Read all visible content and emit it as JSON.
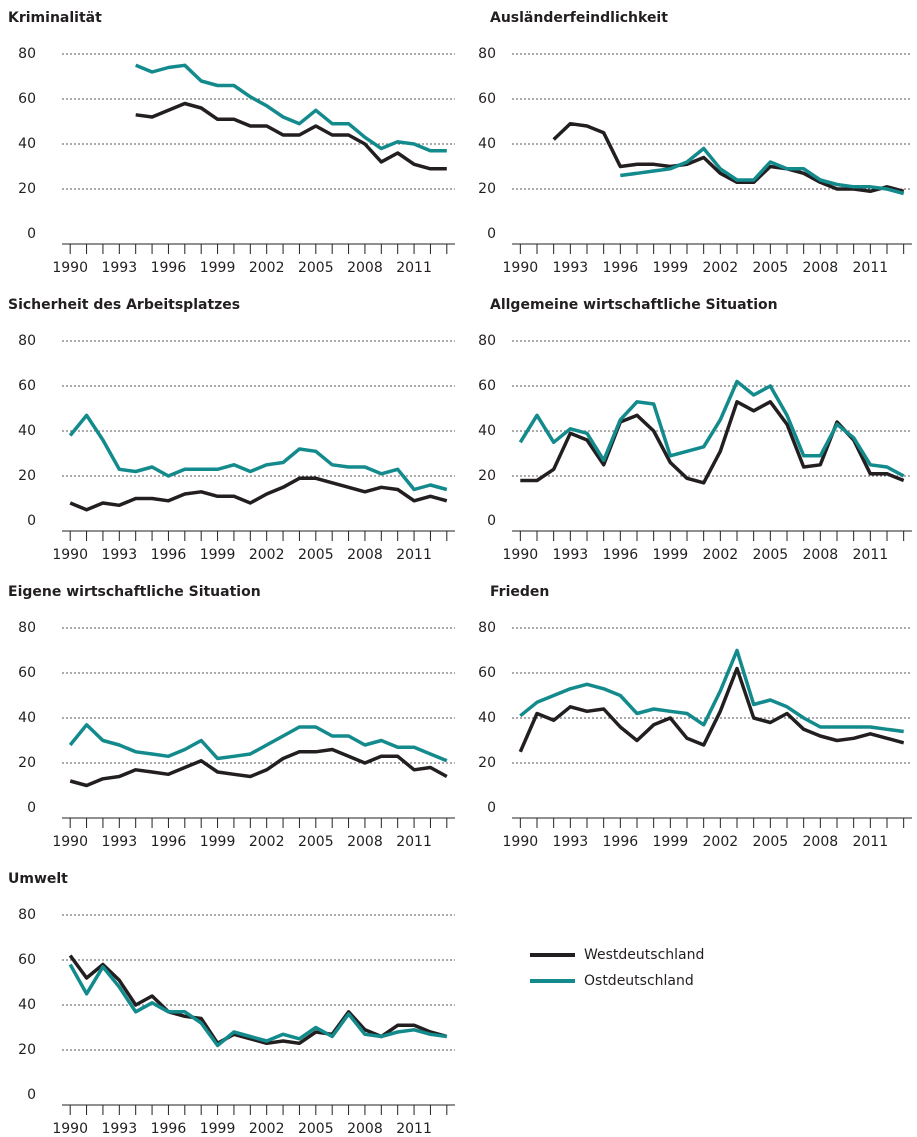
{
  "chart_data": [
    {
      "type": "line",
      "title": "Kriminalität",
      "x": [
        1990,
        1991,
        1992,
        1993,
        1994,
        1995,
        1996,
        1997,
        1998,
        1999,
        2000,
        2001,
        2002,
        2003,
        2004,
        2005,
        2006,
        2007,
        2008,
        2009,
        2010,
        2011,
        2012,
        2013
      ],
      "xlim": [
        1989.5,
        2013.5
      ],
      "xticks": [
        1990,
        1993,
        1996,
        1999,
        2002,
        2005,
        2008,
        2011
      ],
      "ylim": [
        0,
        80
      ],
      "yticks": [
        0,
        20,
        40,
        60,
        80
      ],
      "grid": true,
      "series": [
        {
          "name": "Westdeutschland",
          "color": "#231f20",
          "values": [
            null,
            null,
            null,
            null,
            53,
            52,
            55,
            58,
            56,
            51,
            51,
            48,
            48,
            44,
            44,
            48,
            44,
            44,
            40,
            32,
            36,
            31,
            29,
            29
          ]
        },
        {
          "name": "Ostdeutschland",
          "color": "#138a8c",
          "values": [
            null,
            null,
            null,
            null,
            75,
            72,
            74,
            75,
            68,
            66,
            66,
            61,
            57,
            52,
            49,
            55,
            49,
            49,
            43,
            38,
            41,
            40,
            37,
            37
          ]
        }
      ]
    },
    {
      "type": "line",
      "title": "Ausländerfeindlichkeit",
      "x": [
        1990,
        1991,
        1992,
        1993,
        1994,
        1995,
        1996,
        1997,
        1998,
        1999,
        2000,
        2001,
        2002,
        2003,
        2004,
        2005,
        2006,
        2007,
        2008,
        2009,
        2010,
        2011,
        2012,
        2013
      ],
      "xlim": [
        1989.5,
        2013.5
      ],
      "xticks": [
        1990,
        1993,
        1996,
        1999,
        2002,
        2005,
        2008,
        2011
      ],
      "ylim": [
        0,
        80
      ],
      "yticks": [
        0,
        20,
        40,
        60,
        80
      ],
      "grid": true,
      "series": [
        {
          "color": "#231f20",
          "values": [
            null,
            null,
            42,
            49,
            48,
            45,
            30,
            31,
            31,
            30,
            31,
            34,
            27,
            23,
            23,
            30,
            29,
            27,
            23,
            20,
            20,
            19,
            21,
            19
          ]
        },
        {
          "color": "#138a8c",
          "values": [
            null,
            null,
            null,
            null,
            null,
            null,
            26,
            27,
            28,
            29,
            32,
            38,
            29,
            24,
            24,
            32,
            29,
            29,
            24,
            22,
            21,
            21,
            20,
            18
          ]
        }
      ]
    },
    {
      "type": "line",
      "title": "Sicherheit des Arbeitsplatzes",
      "x": [
        1990,
        1991,
        1992,
        1993,
        1994,
        1995,
        1996,
        1997,
        1998,
        1999,
        2000,
        2001,
        2002,
        2003,
        2004,
        2005,
        2006,
        2007,
        2008,
        2009,
        2010,
        2011,
        2012,
        2013
      ],
      "xlim": [
        1989.5,
        2013.5
      ],
      "xticks": [
        1990,
        1993,
        1996,
        1999,
        2002,
        2005,
        2008,
        2011
      ],
      "ylim": [
        0,
        80
      ],
      "yticks": [
        0,
        20,
        40,
        60,
        80
      ],
      "grid": true,
      "series": [
        {
          "color": "#231f20",
          "values": [
            8,
            5,
            8,
            7,
            10,
            10,
            9,
            12,
            13,
            11,
            11,
            8,
            12,
            15,
            19,
            19,
            17,
            15,
            13,
            15,
            14,
            9,
            11,
            9
          ]
        },
        {
          "color": "#138a8c",
          "values": [
            38,
            47,
            36,
            23,
            22,
            24,
            20,
            23,
            23,
            23,
            25,
            22,
            25,
            26,
            32,
            31,
            25,
            24,
            24,
            21,
            23,
            14,
            16,
            14
          ]
        }
      ]
    },
    {
      "type": "line",
      "title": "Allgemeine wirtschaftliche Situation",
      "x": [
        1990,
        1991,
        1992,
        1993,
        1994,
        1995,
        1996,
        1997,
        1998,
        1999,
        2000,
        2001,
        2002,
        2003,
        2004,
        2005,
        2006,
        2007,
        2008,
        2009,
        2010,
        2011,
        2012,
        2013
      ],
      "xlim": [
        1989.5,
        2013.5
      ],
      "xticks": [
        1990,
        1993,
        1996,
        1999,
        2002,
        2005,
        2008,
        2011
      ],
      "ylim": [
        0,
        80
      ],
      "yticks": [
        0,
        20,
        40,
        60,
        80
      ],
      "grid": true,
      "series": [
        {
          "color": "#231f20",
          "values": [
            18,
            18,
            23,
            39,
            36,
            25,
            44,
            47,
            40,
            26,
            19,
            17,
            31,
            53,
            49,
            53,
            43,
            24,
            25,
            44,
            36,
            21,
            21,
            18
          ]
        },
        {
          "color": "#138a8c",
          "values": [
            35,
            47,
            35,
            41,
            39,
            27,
            45,
            53,
            52,
            29,
            31,
            33,
            45,
            62,
            56,
            60,
            47,
            29,
            29,
            43,
            37,
            25,
            24,
            20
          ]
        }
      ]
    },
    {
      "type": "line",
      "title": "Eigene wirtschaftliche Situation",
      "x": [
        1990,
        1991,
        1992,
        1993,
        1994,
        1995,
        1996,
        1997,
        1998,
        1999,
        2000,
        2001,
        2002,
        2003,
        2004,
        2005,
        2006,
        2007,
        2008,
        2009,
        2010,
        2011,
        2012,
        2013
      ],
      "xlim": [
        1989.5,
        2013.5
      ],
      "xticks": [
        1990,
        1993,
        1996,
        1999,
        2002,
        2005,
        2008,
        2011
      ],
      "ylim": [
        0,
        80
      ],
      "yticks": [
        0,
        20,
        40,
        60,
        80
      ],
      "grid": true,
      "series": [
        {
          "color": "#231f20",
          "values": [
            12,
            10,
            13,
            14,
            17,
            16,
            15,
            18,
            21,
            16,
            15,
            14,
            17,
            22,
            25,
            25,
            26,
            23,
            20,
            23,
            23,
            17,
            18,
            14
          ]
        },
        {
          "color": "#138a8c",
          "values": [
            28,
            37,
            30,
            28,
            25,
            24,
            23,
            26,
            30,
            22,
            23,
            24,
            28,
            32,
            36,
            36,
            32,
            32,
            28,
            30,
            27,
            27,
            24,
            21
          ]
        }
      ]
    },
    {
      "type": "line",
      "title": "Frieden",
      "x": [
        1990,
        1991,
        1992,
        1993,
        1994,
        1995,
        1996,
        1997,
        1998,
        1999,
        2000,
        2001,
        2002,
        2003,
        2004,
        2005,
        2006,
        2007,
        2008,
        2009,
        2010,
        2011,
        2012,
        2013
      ],
      "xlim": [
        1989.5,
        2013.5
      ],
      "xticks": [
        1990,
        1993,
        1996,
        1999,
        2002,
        2005,
        2008,
        2011
      ],
      "ylim": [
        0,
        80
      ],
      "yticks": [
        0,
        20,
        40,
        60,
        80
      ],
      "grid": true,
      "series": [
        {
          "color": "#231f20",
          "values": [
            25,
            42,
            39,
            45,
            43,
            44,
            36,
            30,
            37,
            40,
            31,
            28,
            43,
            62,
            40,
            38,
            42,
            35,
            32,
            30,
            31,
            33,
            31,
            29
          ]
        },
        {
          "color": "#138a8c",
          "values": [
            41,
            47,
            50,
            53,
            55,
            53,
            50,
            42,
            44,
            43,
            42,
            37,
            52,
            70,
            46,
            48,
            45,
            40,
            36,
            36,
            36,
            36,
            35,
            34
          ]
        }
      ]
    },
    {
      "type": "line",
      "title": "Umwelt",
      "x": [
        1990,
        1991,
        1992,
        1993,
        1994,
        1995,
        1996,
        1997,
        1998,
        1999,
        2000,
        2001,
        2002,
        2003,
        2004,
        2005,
        2006,
        2007,
        2008,
        2009,
        2010,
        2011,
        2012,
        2013
      ],
      "xlim": [
        1989.5,
        2013.5
      ],
      "xticks": [
        1990,
        1993,
        1996,
        1999,
        2002,
        2005,
        2008,
        2011
      ],
      "ylim": [
        0,
        80
      ],
      "yticks": [
        0,
        20,
        40,
        60,
        80
      ],
      "grid": true,
      "series": [
        {
          "color": "#231f20",
          "values": [
            62,
            52,
            58,
            51,
            40,
            44,
            37,
            35,
            34,
            23,
            27,
            25,
            23,
            24,
            23,
            28,
            27,
            37,
            29,
            26,
            31,
            31,
            28,
            26
          ]
        },
        {
          "color": "#138a8c",
          "values": [
            58,
            45,
            57,
            48,
            37,
            41,
            37,
            37,
            32,
            22,
            28,
            26,
            24,
            27,
            25,
            30,
            26,
            36,
            27,
            26,
            28,
            29,
            27,
            26
          ]
        }
      ]
    }
  ]
}
